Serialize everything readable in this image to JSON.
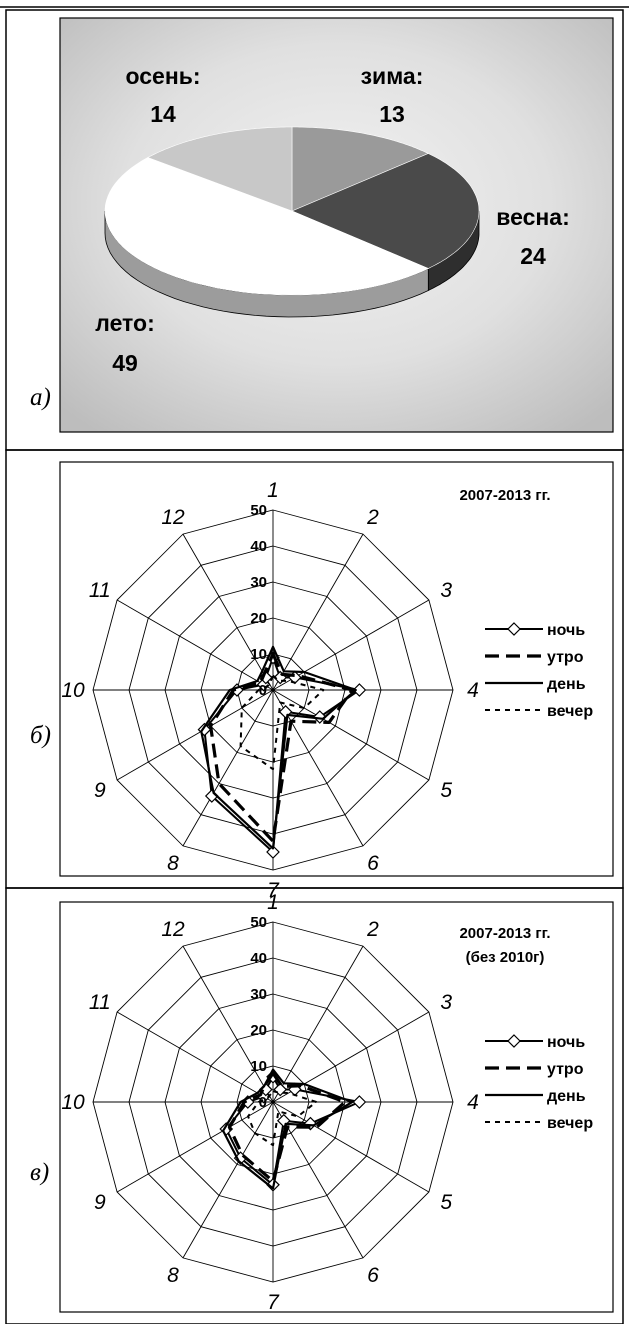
{
  "panel_labels": [
    "а)",
    "б)",
    "в)"
  ],
  "chart_data": [
    {
      "type": "pie",
      "title": "",
      "slices": [
        {
          "label": "зима:",
          "value": 13,
          "color": "#9a9a9a"
        },
        {
          "label": "весна:",
          "value": 24,
          "color": "#4a4a4a"
        },
        {
          "label": "лето:",
          "value": 49,
          "color": "#ffffff"
        },
        {
          "label": "осень:",
          "value": 14,
          "color": "#c8c8c8"
        }
      ],
      "background": "#c4c4c4",
      "style": "3d"
    },
    {
      "type": "radar",
      "title": "2007-2013 гг.",
      "subtitle": "",
      "categories": [
        "1",
        "2",
        "3",
        "4",
        "5",
        "6",
        "7",
        "8",
        "9",
        "10",
        "11",
        "12"
      ],
      "rlim": [
        0,
        50
      ],
      "rticks": [
        "0",
        "10",
        "20",
        "30",
        "40",
        "50"
      ],
      "legend_position": "right",
      "series": [
        {
          "name": "ночь",
          "values": [
            9,
            4,
            7,
            24,
            15,
            7,
            45,
            34,
            22,
            10,
            3,
            4
          ]
        },
        {
          "name": "утро",
          "values": [
            10,
            5,
            8,
            22,
            18,
            10,
            42,
            30,
            20,
            11,
            4,
            5
          ]
        },
        {
          "name": "день",
          "values": [
            12,
            6,
            10,
            23,
            16,
            8,
            44,
            33,
            23,
            12,
            5,
            6
          ]
        },
        {
          "name": "вечер",
          "values": [
            4,
            3,
            5,
            14,
            10,
            4,
            22,
            18,
            10,
            4,
            2,
            2
          ]
        }
      ]
    },
    {
      "type": "radar",
      "title": "2007-2013 гг.",
      "subtitle": "(без 2010г)",
      "categories": [
        "1",
        "2",
        "3",
        "4",
        "5",
        "6",
        "7",
        "8",
        "9",
        "10",
        "11",
        "12"
      ],
      "rlim": [
        0,
        50
      ],
      "rticks": [
        "0",
        "10",
        "20",
        "30",
        "40",
        "50"
      ],
      "legend_position": "right",
      "series": [
        {
          "name": "ночь",
          "values": [
            7,
            4,
            7,
            24,
            12,
            6,
            23,
            18,
            15,
            7,
            3,
            4
          ]
        },
        {
          "name": "утро",
          "values": [
            8,
            5,
            9,
            20,
            14,
            8,
            22,
            17,
            14,
            8,
            4,
            5
          ]
        },
        {
          "name": "день",
          "values": [
            9,
            6,
            10,
            22,
            13,
            7,
            24,
            19,
            16,
            9,
            5,
            5
          ]
        },
        {
          "name": "вечер",
          "values": [
            3,
            3,
            5,
            12,
            8,
            3,
            12,
            10,
            8,
            4,
            2,
            2
          ]
        }
      ]
    }
  ]
}
